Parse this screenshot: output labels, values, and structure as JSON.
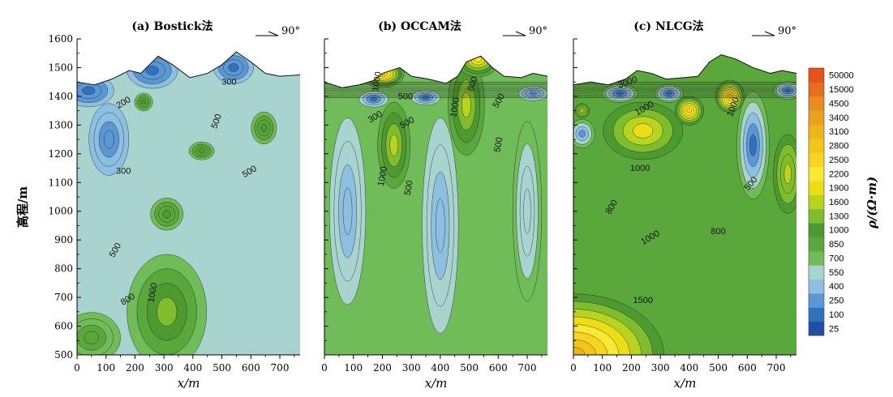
{
  "labels": {
    "ylabel": "高程/m",
    "xlabel": "x/m",
    "cbar_title": "ρ/(Ω·m)",
    "direction": "90°"
  },
  "colors": {
    "low": "#1f4fa3",
    "mid": "#5aa83c",
    "high": "#f2c518",
    "max": "#e5531a"
  },
  "chart_data": {
    "type": "heatmap",
    "xlabel": "x/m",
    "ylabel": "高程/m",
    "xlim": [
      0,
      770
    ],
    "ylim": [
      500,
      1600
    ],
    "x_ticks": [
      0,
      100,
      200,
      300,
      400,
      500,
      600,
      700
    ],
    "y_ticks": [
      500,
      600,
      700,
      800,
      900,
      1000,
      1100,
      1200,
      1300,
      1400,
      1500,
      1600
    ],
    "colorbar": {
      "title": "ρ/(Ω·m)",
      "levels": [
        25,
        100,
        250,
        400,
        550,
        700,
        850,
        1000,
        1300,
        1600,
        1900,
        2200,
        2500,
        2800,
        3100,
        3400,
        4500,
        15000,
        50000
      ],
      "colors": [
        "#1f4fa3",
        "#2f73c0",
        "#5b98d3",
        "#8dbfe0",
        "#a9d3cf",
        "#6fbc58",
        "#5aa83c",
        "#4c9a31",
        "#7fbd2e",
        "#b8d421",
        "#eddd13",
        "#f9e836",
        "#f7d51e",
        "#f2c518",
        "#eeb41c",
        "#eba21e",
        "#e88d20",
        "#e76e1f",
        "#e5531a"
      ]
    },
    "panels": [
      {
        "title": "(a) Bostick法",
        "topography": [
          [
            0,
            1450
          ],
          [
            60,
            1440
          ],
          [
            120,
            1460
          ],
          [
            180,
            1490
          ],
          [
            220,
            1480
          ],
          [
            280,
            1540
          ],
          [
            330,
            1510
          ],
          [
            390,
            1465
          ],
          [
            450,
            1480
          ],
          [
            500,
            1510
          ],
          [
            550,
            1555
          ],
          [
            600,
            1520
          ],
          [
            650,
            1480
          ],
          [
            700,
            1470
          ],
          [
            770,
            1475
          ]
        ],
        "background": 550,
        "anomalies": [
          {
            "x": 40,
            "y": 1420,
            "rho": 100,
            "rx": 70,
            "ry": 45
          },
          {
            "x": 110,
            "y": 1250,
            "rho": 250,
            "rx": 55,
            "ry": 100
          },
          {
            "x": 260,
            "y": 1490,
            "rho": 150,
            "rx": 70,
            "ry": 50
          },
          {
            "x": 540,
            "y": 1500,
            "rho": 120,
            "rx": 55,
            "ry": 45
          },
          {
            "x": 310,
            "y": 650,
            "rho": 1300,
            "rx": 110,
            "ry": 160
          },
          {
            "x": 310,
            "y": 990,
            "rho": 1000,
            "rx": 45,
            "ry": 45
          },
          {
            "x": 645,
            "y": 1290,
            "rho": 1000,
            "rx": 35,
            "ry": 45
          },
          {
            "x": 430,
            "y": 1210,
            "rho": 1000,
            "rx": 35,
            "ry": 25
          },
          {
            "x": 230,
            "y": 1380,
            "rho": 1000,
            "rx": 25,
            "ry": 25
          },
          {
            "x": 50,
            "y": 560,
            "rho": 850,
            "rx": 80,
            "ry": 70
          }
        ],
        "contour_labels": [
          {
            "x": 165,
            "y": 1370,
            "text": "200",
            "rot": -30
          },
          {
            "x": 525,
            "y": 1440,
            "text": "300",
            "rot": 0
          },
          {
            "x": 160,
            "y": 1130,
            "text": "300",
            "rot": 0
          },
          {
            "x": 490,
            "y": 1310,
            "text": "500",
            "rot": -70
          },
          {
            "x": 600,
            "y": 1130,
            "text": "500",
            "rot": -30
          },
          {
            "x": 140,
            "y": 860,
            "text": "500",
            "rot": -60
          },
          {
            "x": 180,
            "y": 685,
            "text": "800",
            "rot": -30
          },
          {
            "x": 270,
            "y": 715,
            "text": "1000",
            "rot": -80
          }
        ]
      },
      {
        "title": "(b) OCCAM法",
        "topography": [
          [
            0,
            1450
          ],
          [
            60,
            1430
          ],
          [
            120,
            1440
          ],
          [
            170,
            1455
          ],
          [
            200,
            1480
          ],
          [
            260,
            1500
          ],
          [
            300,
            1470
          ],
          [
            360,
            1460
          ],
          [
            420,
            1445
          ],
          [
            460,
            1470
          ],
          [
            490,
            1520
          ],
          [
            540,
            1540
          ],
          [
            580,
            1500
          ],
          [
            620,
            1470
          ],
          [
            680,
            1465
          ],
          [
            720,
            1480
          ],
          [
            770,
            1470
          ]
        ],
        "background": 700,
        "anomalies": [
          {
            "x": 240,
            "y": 1230,
            "rho": 1600,
            "rx": 45,
            "ry": 120
          },
          {
            "x": 490,
            "y": 1370,
            "rho": 1600,
            "rx": 50,
            "ry": 140
          },
          {
            "x": 200,
            "y": 1480,
            "rho": 2800,
            "rx": 60,
            "ry": 40
          },
          {
            "x": 530,
            "y": 1530,
            "rho": 2200,
            "rx": 60,
            "ry": 50
          },
          {
            "x": 170,
            "y": 1390,
            "rho": 150,
            "rx": 40,
            "ry": 22
          },
          {
            "x": 350,
            "y": 1395,
            "rho": 150,
            "rx": 40,
            "ry": 20
          },
          {
            "x": 720,
            "y": 1410,
            "rho": 250,
            "rx": 40,
            "ry": 20
          },
          {
            "x": 80,
            "y": 1000,
            "rho": 500,
            "rx": 50,
            "ry": 260
          },
          {
            "x": 400,
            "y": 950,
            "rho": 500,
            "rx": 50,
            "ry": 300
          },
          {
            "x": 700,
            "y": 1000,
            "rho": 550,
            "rx": 40,
            "ry": 250
          }
        ],
        "contour_labels": [
          {
            "x": 190,
            "y": 1450,
            "text": "1000",
            "rot": -80
          },
          {
            "x": 280,
            "y": 1390,
            "text": "500",
            "rot": 0
          },
          {
            "x": 180,
            "y": 1320,
            "text": "300",
            "rot": -30
          },
          {
            "x": 290,
            "y": 1300,
            "text": "500",
            "rot": -30
          },
          {
            "x": 460,
            "y": 1360,
            "text": "1000",
            "rot": -80
          },
          {
            "x": 520,
            "y": 1440,
            "text": "800",
            "rot": -70
          },
          {
            "x": 610,
            "y": 1380,
            "text": "500",
            "rot": -60
          },
          {
            "x": 610,
            "y": 1230,
            "text": "500",
            "rot": -80
          },
          {
            "x": 210,
            "y": 1120,
            "text": "1000",
            "rot": -80
          },
          {
            "x": 300,
            "y": 1080,
            "text": "500",
            "rot": -80
          }
        ]
      },
      {
        "title": "(c) NLCG法",
        "topography": [
          [
            0,
            1440
          ],
          [
            60,
            1450
          ],
          [
            120,
            1440
          ],
          [
            180,
            1460
          ],
          [
            220,
            1490
          ],
          [
            270,
            1480
          ],
          [
            320,
            1460
          ],
          [
            380,
            1465
          ],
          [
            430,
            1470
          ],
          [
            470,
            1520
          ],
          [
            510,
            1545
          ],
          [
            560,
            1530
          ],
          [
            620,
            1500
          ],
          [
            680,
            1480
          ],
          [
            720,
            1490
          ],
          [
            770,
            1480
          ]
        ],
        "background": 850,
        "anomalies": [
          {
            "x": 620,
            "y": 1230,
            "rho": 100,
            "rx": 45,
            "ry": 150
          },
          {
            "x": 30,
            "y": 1270,
            "rho": 250,
            "rx": 35,
            "ry": 40
          },
          {
            "x": 160,
            "y": 1410,
            "rho": 100,
            "rx": 50,
            "ry": 25
          },
          {
            "x": 330,
            "y": 1410,
            "rho": 100,
            "rx": 40,
            "ry": 25
          },
          {
            "x": 740,
            "y": 1420,
            "rho": 100,
            "rx": 40,
            "ry": 25
          },
          {
            "x": 240,
            "y": 1280,
            "rho": 1900,
            "rx": 110,
            "ry": 80
          },
          {
            "x": 400,
            "y": 1350,
            "rho": 2500,
            "rx": 40,
            "ry": 40
          },
          {
            "x": 540,
            "y": 1400,
            "rho": 2800,
            "rx": 40,
            "ry": 45
          },
          {
            "x": 0,
            "y": 500,
            "rho": 3100,
            "rx": 250,
            "ry": 170
          },
          {
            "x": 740,
            "y": 1130,
            "rho": 1600,
            "rx": 40,
            "ry": 110
          },
          {
            "x": 30,
            "y": 1350,
            "rho": 1600,
            "rx": 20,
            "ry": 20
          }
        ],
        "contour_labels": [
          {
            "x": 190,
            "y": 1440,
            "text": "3000",
            "rot": -20
          },
          {
            "x": 250,
            "y": 1350,
            "text": "1000",
            "rot": -30
          },
          {
            "x": 560,
            "y": 1360,
            "text": "1000",
            "rot": -70
          },
          {
            "x": 620,
            "y": 1090,
            "text": "500",
            "rot": -50
          },
          {
            "x": 140,
            "y": 1010,
            "text": "800",
            "rot": -60
          },
          {
            "x": 270,
            "y": 900,
            "text": "1000",
            "rot": -30
          },
          {
            "x": 500,
            "y": 920,
            "text": "800",
            "rot": 0
          },
          {
            "x": 240,
            "y": 680,
            "text": "1500",
            "rot": 0
          },
          {
            "x": 230,
            "y": 1140,
            "text": "1000",
            "rot": 0
          }
        ]
      }
    ]
  }
}
